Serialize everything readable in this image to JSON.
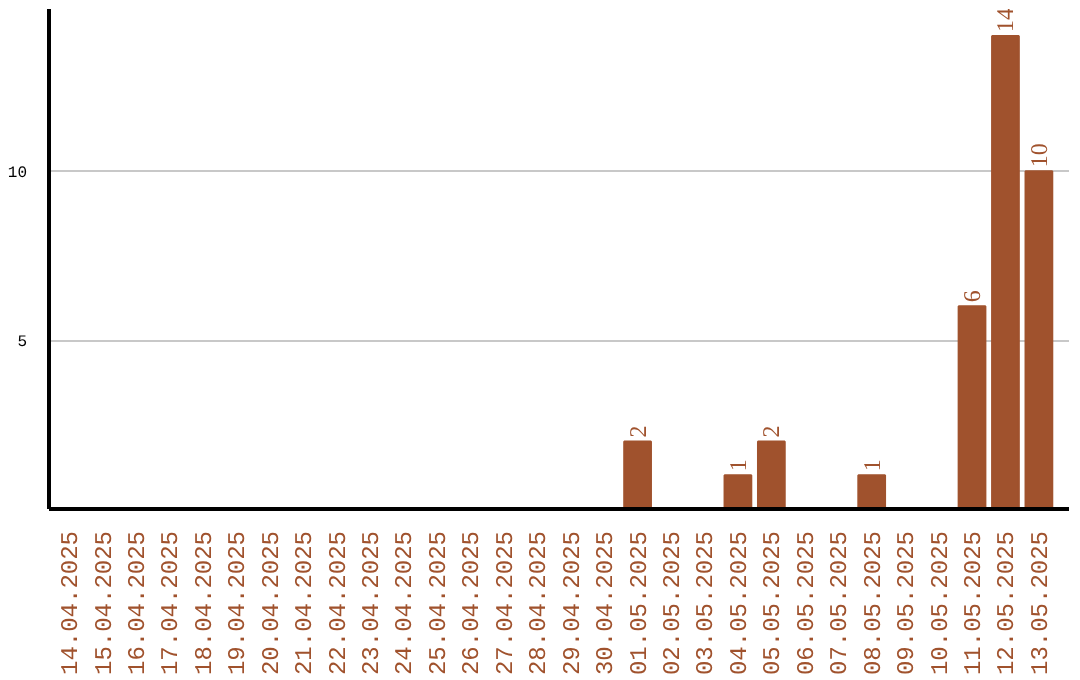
{
  "chart_data": {
    "type": "bar",
    "categories": [
      "14.04.2025",
      "15.04.2025",
      "16.04.2025",
      "17.04.2025",
      "18.04.2025",
      "19.04.2025",
      "20.04.2025",
      "21.04.2025",
      "22.04.2025",
      "23.04.2025",
      "24.04.2025",
      "25.04.2025",
      "26.04.2025",
      "27.04.2025",
      "28.04.2025",
      "29.04.2025",
      "30.04.2025",
      "01.05.2025",
      "02.05.2025",
      "03.05.2025",
      "04.05.2025",
      "05.05.2025",
      "06.05.2025",
      "07.05.2025",
      "08.05.2025",
      "09.05.2025",
      "10.05.2025",
      "11.05.2025",
      "12.05.2025",
      "13.05.2025"
    ],
    "values": [
      0,
      0,
      0,
      0,
      0,
      0,
      0,
      0,
      0,
      0,
      0,
      0,
      0,
      0,
      0,
      0,
      0,
      2,
      0,
      0,
      1,
      2,
      0,
      0,
      1,
      0,
      0,
      6,
      14,
      10
    ],
    "value_labels": [
      null,
      null,
      null,
      null,
      null,
      null,
      null,
      null,
      null,
      null,
      null,
      null,
      null,
      null,
      null,
      null,
      null,
      "2",
      null,
      null,
      "1",
      "2",
      null,
      null,
      "1",
      null,
      null,
      "6",
      "14",
      "10"
    ],
    "color": "#a0522d",
    "ylim": [
      0,
      14.8
    ],
    "yticks": [
      5,
      10
    ],
    "grid": "y"
  }
}
